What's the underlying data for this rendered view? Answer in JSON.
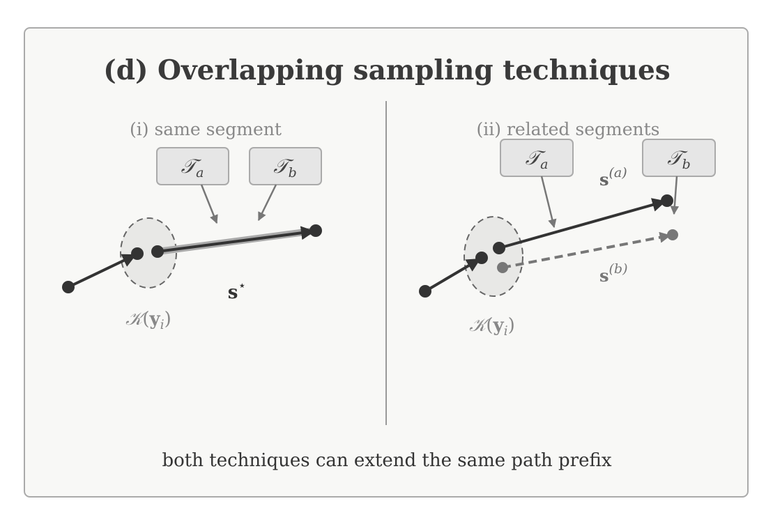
{
  "title": "(d) Overlapping sampling techniques",
  "panels": [
    {
      "subtitle": "(i) same segment",
      "boxes": [
        {
          "symbol": "𝒯",
          "sub": "a"
        },
        {
          "symbol": "𝒯",
          "sub": "b"
        }
      ],
      "segment_labels": [
        {
          "symbol": "s",
          "sup": "⋆"
        }
      ],
      "region": {
        "symbol": "𝒦",
        "open": "(",
        "arg": "y",
        "sub": "i",
        "close": ")"
      }
    },
    {
      "subtitle": "(ii) related segments",
      "boxes": [
        {
          "symbol": "𝒯",
          "sub": "a"
        },
        {
          "symbol": "𝒯",
          "sub": "b"
        }
      ],
      "segment_labels": [
        {
          "symbol": "s",
          "sup": "(a)"
        },
        {
          "symbol": "s",
          "sup": "(b)"
        }
      ],
      "region": {
        "symbol": "𝒦",
        "open": "(",
        "arg": "y",
        "sub": "i",
        "close": ")"
      }
    }
  ],
  "caption": "both techniques can extend the same path prefix"
}
